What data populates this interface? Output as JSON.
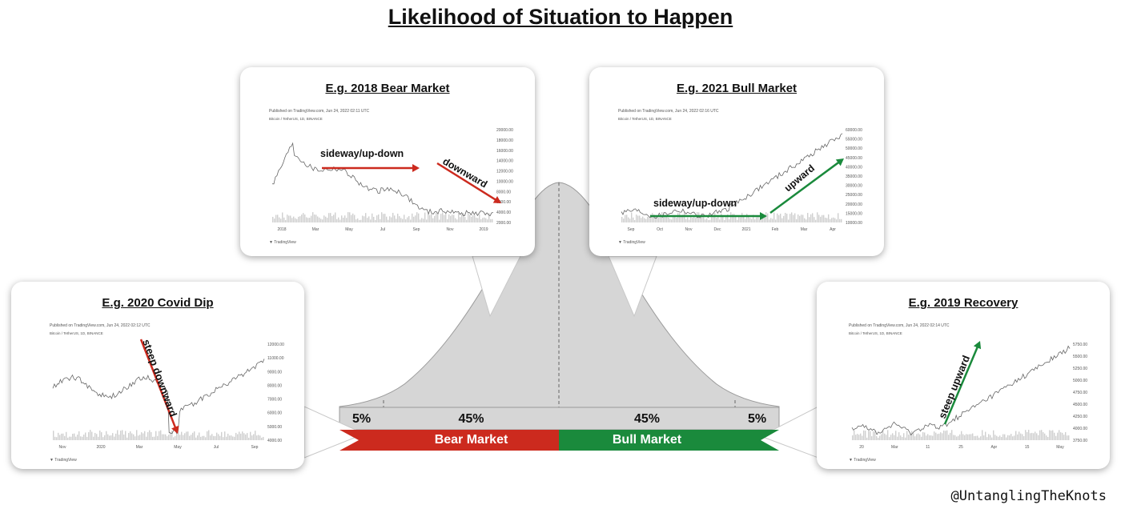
{
  "page": {
    "title": "Likelihood of Situation to Happen",
    "handle": "@UntanglingTheKnots"
  },
  "segments": [
    {
      "pct": "5%",
      "label": "",
      "color": "#cc2a1e"
    },
    {
      "pct": "45%",
      "label": "Bear Market",
      "color": "#cc2a1e"
    },
    {
      "pct": "45%",
      "label": "Bull Market",
      "color": "#1a8a3c"
    },
    {
      "pct": "5%",
      "label": "",
      "color": "#1a8a3c"
    }
  ],
  "cards": {
    "covid": {
      "title": "E.g. 2020 Covid Dip",
      "published": "Published on TradingView.com, Jun 24, 2022 02:12 UTC",
      "symbol": "Bitcoin / TetherUS, 1D, BINANCE",
      "yticks": [
        "12000.00",
        "11000.00",
        "9000.00",
        "8000.00",
        "7000.00",
        "6000.00",
        "5000.00",
        "4000.00"
      ],
      "xticks": [
        "Nov",
        "2020",
        "Mar",
        "May",
        "Jul",
        "Sep"
      ],
      "annotations": [
        "steep downward"
      ]
    },
    "bear": {
      "title": "E.g. 2018 Bear Market",
      "published": "Published on TradingView.com, Jun 24, 2022 02:11 UTC",
      "symbol": "Bitcoin / TetherUS, 1D, BINANCE",
      "yticks": [
        "20000.00",
        "18000.00",
        "16000.00",
        "14000.00",
        "12000.00",
        "10000.00",
        "8000.00",
        "6000.00",
        "4000.00",
        "2000.00"
      ],
      "xticks": [
        "2018",
        "Mar",
        "May",
        "Jul",
        "Sep",
        "Nov",
        "2019"
      ],
      "annotations": [
        "sideway/up-down",
        "downward"
      ]
    },
    "bull": {
      "title": "E.g. 2021 Bull Market",
      "published": "Published on TradingView.com, Jun 24, 2022 02:16 UTC",
      "symbol": "Bitcoin / TetherUS, 1D, BINANCE",
      "yticks": [
        "60000.00",
        "55000.00",
        "50000.00",
        "45000.00",
        "40000.00",
        "35000.00",
        "30000.00",
        "25000.00",
        "20000.00",
        "15000.00",
        "10000.00"
      ],
      "xticks": [
        "Sep",
        "Oct",
        "Nov",
        "Dec",
        "2021",
        "Feb",
        "Mar",
        "Apr"
      ],
      "annotations": [
        "sideway/up-down",
        "upward"
      ]
    },
    "recovery": {
      "title": "E.g. 2019 Recovery",
      "published": "Published on TradingView.com, Jun 24, 2022 02:14 UTC",
      "symbol": "Bitcoin / TetherUS, 1D, BINANCE",
      "yticks": [
        "5750.00",
        "5500.00",
        "5250.00",
        "5000.00",
        "4750.00",
        "4500.00",
        "4250.00",
        "4000.00",
        "3750.00"
      ],
      "xticks": [
        "20",
        "Mar",
        "11",
        "25",
        "Apr",
        "15",
        "May"
      ],
      "annotations": [
        "steep upward"
      ]
    }
  },
  "colors": {
    "red": "#cc2a1e",
    "green": "#1a8a3c",
    "curve": "#d6d6d6"
  }
}
